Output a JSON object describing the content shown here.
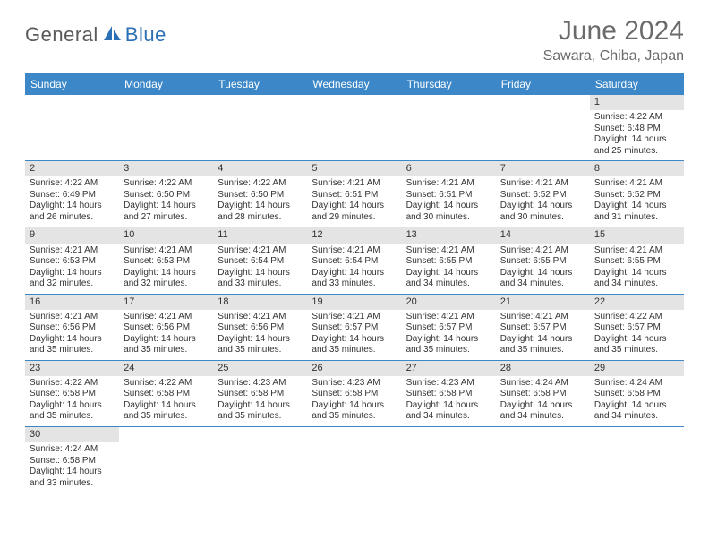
{
  "logo": {
    "part1": "General",
    "part2": "Blue"
  },
  "title": "June 2024",
  "location": "Sawara, Chiba, Japan",
  "colors": {
    "headerBlue": "#3b87c8",
    "rowDivider": "#3b87c8",
    "dayNumBg": "#e4e4e4",
    "titleGray": "#6a6a6a",
    "logoGray": "#5a5a5a",
    "logoBlue": "#2b6fb5"
  },
  "dayNames": [
    "Sunday",
    "Monday",
    "Tuesday",
    "Wednesday",
    "Thursday",
    "Friday",
    "Saturday"
  ],
  "firstWeekday": 6,
  "daysInMonth": 30,
  "days": {
    "1": {
      "sunrise": "4:22 AM",
      "sunset": "6:48 PM",
      "daylight": "14 hours and 25 minutes."
    },
    "2": {
      "sunrise": "4:22 AM",
      "sunset": "6:49 PM",
      "daylight": "14 hours and 26 minutes."
    },
    "3": {
      "sunrise": "4:22 AM",
      "sunset": "6:50 PM",
      "daylight": "14 hours and 27 minutes."
    },
    "4": {
      "sunrise": "4:22 AM",
      "sunset": "6:50 PM",
      "daylight": "14 hours and 28 minutes."
    },
    "5": {
      "sunrise": "4:21 AM",
      "sunset": "6:51 PM",
      "daylight": "14 hours and 29 minutes."
    },
    "6": {
      "sunrise": "4:21 AM",
      "sunset": "6:51 PM",
      "daylight": "14 hours and 30 minutes."
    },
    "7": {
      "sunrise": "4:21 AM",
      "sunset": "6:52 PM",
      "daylight": "14 hours and 30 minutes."
    },
    "8": {
      "sunrise": "4:21 AM",
      "sunset": "6:52 PM",
      "daylight": "14 hours and 31 minutes."
    },
    "9": {
      "sunrise": "4:21 AM",
      "sunset": "6:53 PM",
      "daylight": "14 hours and 32 minutes."
    },
    "10": {
      "sunrise": "4:21 AM",
      "sunset": "6:53 PM",
      "daylight": "14 hours and 32 minutes."
    },
    "11": {
      "sunrise": "4:21 AM",
      "sunset": "6:54 PM",
      "daylight": "14 hours and 33 minutes."
    },
    "12": {
      "sunrise": "4:21 AM",
      "sunset": "6:54 PM",
      "daylight": "14 hours and 33 minutes."
    },
    "13": {
      "sunrise": "4:21 AM",
      "sunset": "6:55 PM",
      "daylight": "14 hours and 34 minutes."
    },
    "14": {
      "sunrise": "4:21 AM",
      "sunset": "6:55 PM",
      "daylight": "14 hours and 34 minutes."
    },
    "15": {
      "sunrise": "4:21 AM",
      "sunset": "6:55 PM",
      "daylight": "14 hours and 34 minutes."
    },
    "16": {
      "sunrise": "4:21 AM",
      "sunset": "6:56 PM",
      "daylight": "14 hours and 35 minutes."
    },
    "17": {
      "sunrise": "4:21 AM",
      "sunset": "6:56 PM",
      "daylight": "14 hours and 35 minutes."
    },
    "18": {
      "sunrise": "4:21 AM",
      "sunset": "6:56 PM",
      "daylight": "14 hours and 35 minutes."
    },
    "19": {
      "sunrise": "4:21 AM",
      "sunset": "6:57 PM",
      "daylight": "14 hours and 35 minutes."
    },
    "20": {
      "sunrise": "4:21 AM",
      "sunset": "6:57 PM",
      "daylight": "14 hours and 35 minutes."
    },
    "21": {
      "sunrise": "4:21 AM",
      "sunset": "6:57 PM",
      "daylight": "14 hours and 35 minutes."
    },
    "22": {
      "sunrise": "4:22 AM",
      "sunset": "6:57 PM",
      "daylight": "14 hours and 35 minutes."
    },
    "23": {
      "sunrise": "4:22 AM",
      "sunset": "6:58 PM",
      "daylight": "14 hours and 35 minutes."
    },
    "24": {
      "sunrise": "4:22 AM",
      "sunset": "6:58 PM",
      "daylight": "14 hours and 35 minutes."
    },
    "25": {
      "sunrise": "4:23 AM",
      "sunset": "6:58 PM",
      "daylight": "14 hours and 35 minutes."
    },
    "26": {
      "sunrise": "4:23 AM",
      "sunset": "6:58 PM",
      "daylight": "14 hours and 35 minutes."
    },
    "27": {
      "sunrise": "4:23 AM",
      "sunset": "6:58 PM",
      "daylight": "14 hours and 34 minutes."
    },
    "28": {
      "sunrise": "4:24 AM",
      "sunset": "6:58 PM",
      "daylight": "14 hours and 34 minutes."
    },
    "29": {
      "sunrise": "4:24 AM",
      "sunset": "6:58 PM",
      "daylight": "14 hours and 34 minutes."
    },
    "30": {
      "sunrise": "4:24 AM",
      "sunset": "6:58 PM",
      "daylight": "14 hours and 33 minutes."
    }
  },
  "labels": {
    "sunrise": "Sunrise:",
    "sunset": "Sunset:",
    "daylight": "Daylight:"
  }
}
